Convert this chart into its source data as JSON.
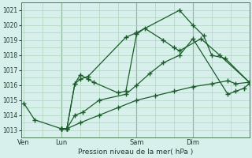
{
  "xlabel": "Pression niveau de la mer( hPa )",
  "bg_color": "#d8f0ec",
  "grid_color": "#b0d4be",
  "line_color": "#1a5c2a",
  "vline_color": "#4a7a5a",
  "ylim": [
    1012.5,
    1021.5
  ],
  "yticks": [
    1013,
    1014,
    1015,
    1016,
    1017,
    1018,
    1019,
    1020,
    1021
  ],
  "day_labels": [
    "Ven",
    "Lun",
    "Sam",
    "Dim"
  ],
  "day_positions": [
    0,
    14,
    42,
    63
  ],
  "vline_positions": [
    14,
    42,
    63
  ],
  "xlim": [
    -1,
    84
  ],
  "series": [
    {
      "x": [
        0,
        4,
        14,
        16,
        19,
        21,
        24,
        38,
        42,
        58,
        63,
        67,
        70,
        75,
        84
      ],
      "y": [
        1014.8,
        1013.7,
        1013.1,
        1013.1,
        1016.1,
        1016.4,
        1016.6,
        1019.2,
        1019.5,
        1021.0,
        1020.0,
        1019.3,
        1018.0,
        1017.8,
        1016.2
      ]
    },
    {
      "x": [
        14,
        16,
        19,
        21,
        24,
        26,
        35,
        38,
        42,
        45,
        52,
        56,
        58,
        66,
        73,
        84
      ],
      "y": [
        1013.1,
        1013.1,
        1016.1,
        1016.7,
        1016.4,
        1016.2,
        1015.5,
        1015.6,
        1019.4,
        1019.8,
        1019.0,
        1018.5,
        1018.3,
        1019.1,
        1018.0,
        1016.2
      ]
    },
    {
      "x": [
        14,
        16,
        19,
        22,
        28,
        38,
        42,
        47,
        52,
        58,
        63,
        76,
        79,
        82,
        84
      ],
      "y": [
        1013.1,
        1013.1,
        1014.0,
        1014.2,
        1015.0,
        1015.4,
        1016.0,
        1016.8,
        1017.5,
        1018.0,
        1019.1,
        1015.4,
        1015.6,
        1015.8,
        1016.1
      ]
    },
    {
      "x": [
        14,
        16,
        21,
        28,
        35,
        42,
        49,
        56,
        63,
        70,
        76,
        79,
        84
      ],
      "y": [
        1013.1,
        1013.1,
        1013.5,
        1014.0,
        1014.5,
        1015.0,
        1015.3,
        1015.6,
        1015.9,
        1016.1,
        1016.3,
        1016.1,
        1016.2
      ]
    }
  ]
}
